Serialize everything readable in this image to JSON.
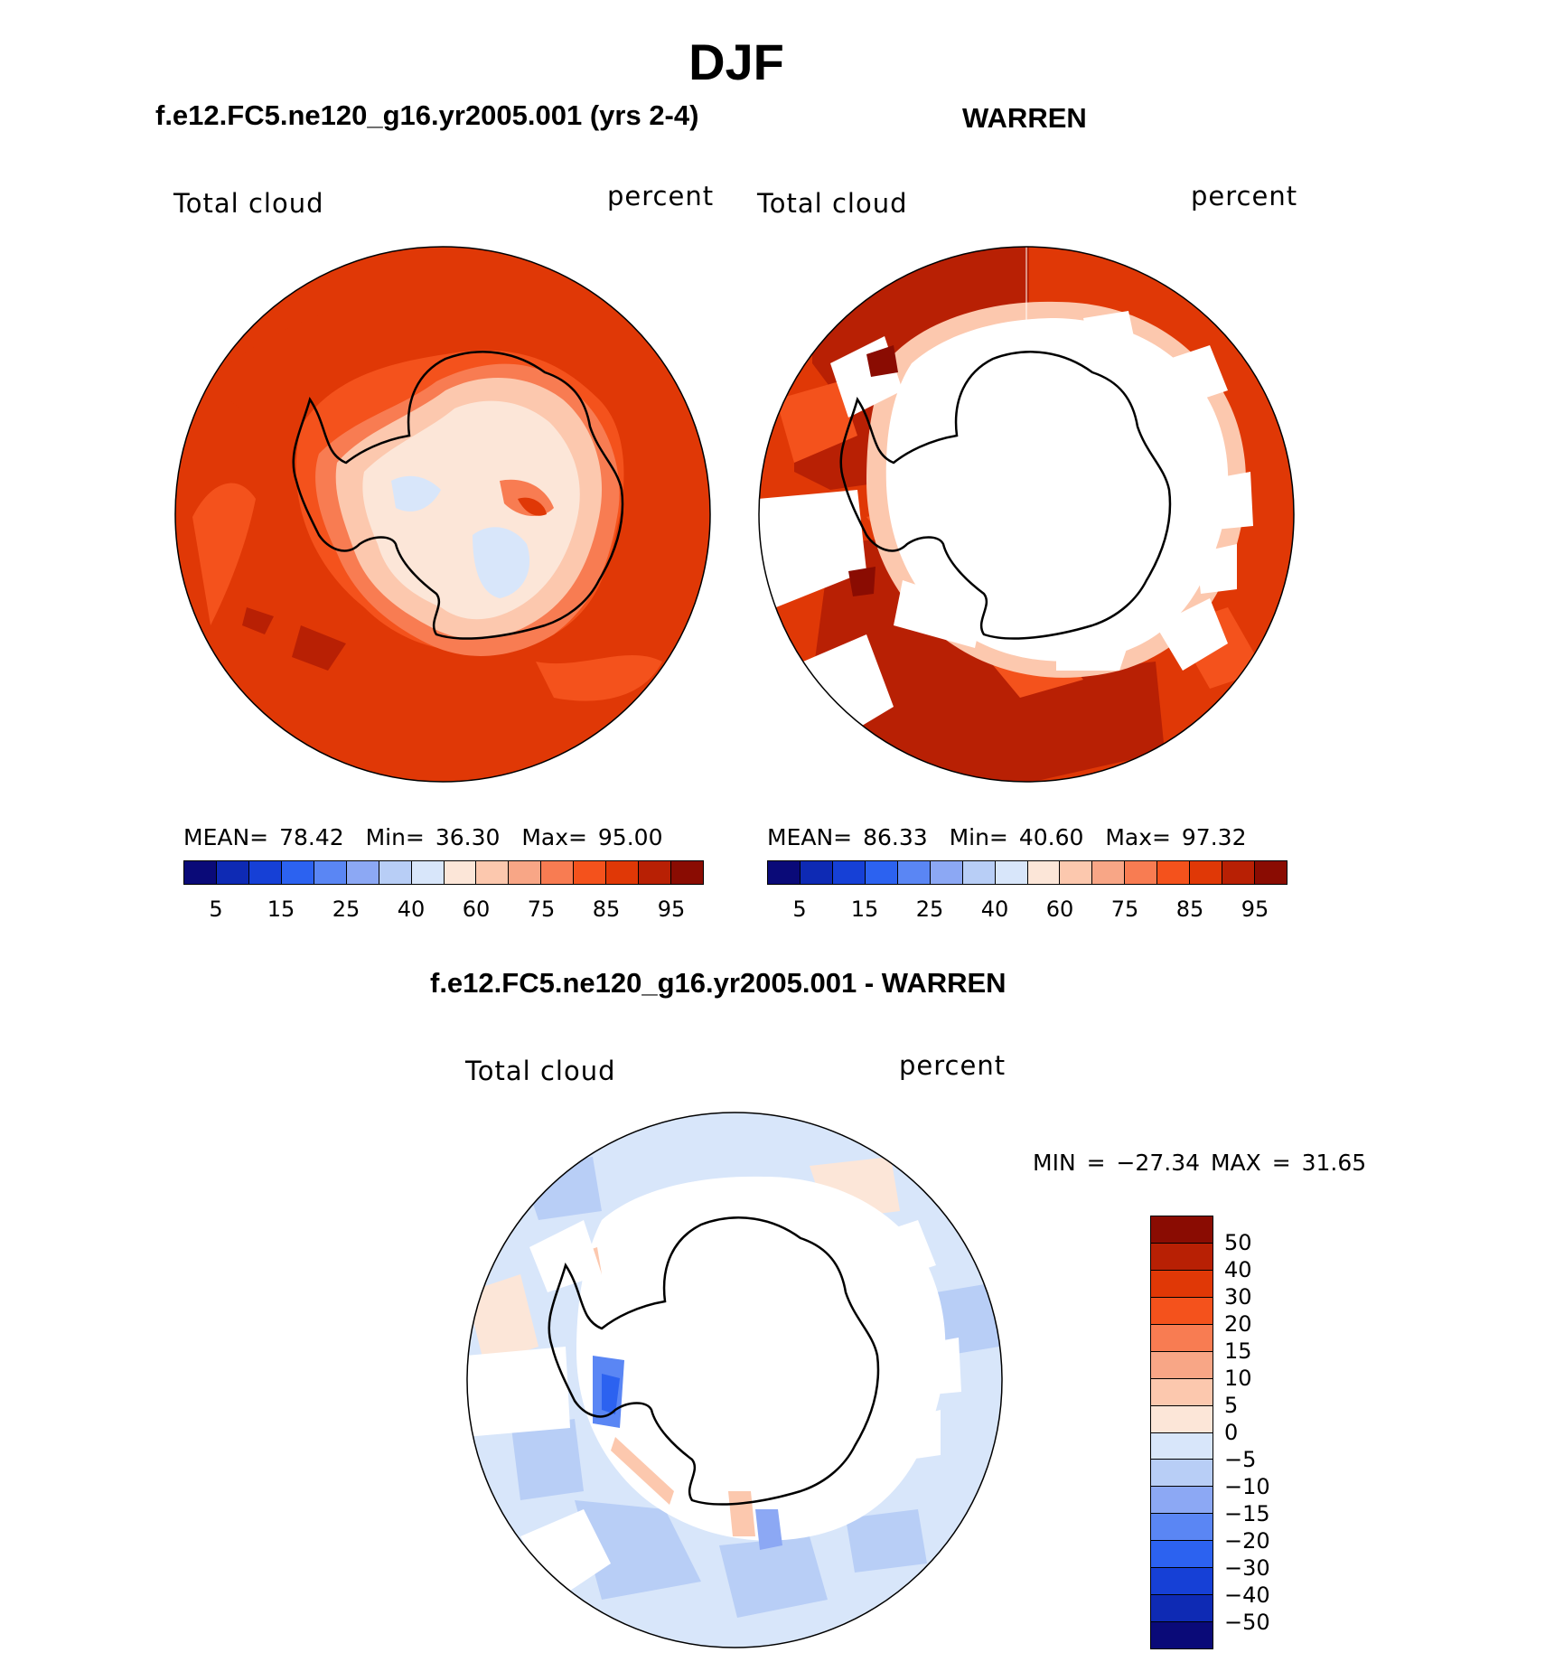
{
  "title": "DJF",
  "variable": "Total cloud",
  "units": "percent",
  "panel1": {
    "title": "f.e12.FC5.ne120_g16.yr2005.001 (yrs 2-4)",
    "stats": {
      "mean_label": "MEAN=",
      "mean": "78.42",
      "min_label": "Min=",
      "min": "36.30",
      "max_label": "Max=",
      "max": "95.00"
    }
  },
  "panel2": {
    "title": "WARREN",
    "stats": {
      "mean_label": "MEAN=",
      "mean": "86.33",
      "min_label": "Min=",
      "min": "40.60",
      "max_label": "Max=",
      "max": "97.32"
    }
  },
  "panel3": {
    "title": "f.e12.FC5.ne120_g16.yr2005.001 - WARREN",
    "stats": "MIN = −27.34 MAX =   31.65"
  },
  "abs_colorbar": {
    "colors": [
      "#0a0a78",
      "#0e2ab4",
      "#1640d6",
      "#2c62f0",
      "#5a86f4",
      "#8ca8f4",
      "#b8cef6",
      "#d8e6fa",
      "#fce6d8",
      "#fcc8ae",
      "#f8a686",
      "#f87c52",
      "#f4521c",
      "#e03806",
      "#b82004",
      "#8a0c02"
    ],
    "ticks": [
      "5",
      "15",
      "25",
      "40",
      "60",
      "75",
      "85",
      "95"
    ]
  },
  "diff_colorbar": {
    "colors": [
      "#8a0c02",
      "#b82004",
      "#e03806",
      "#f4521c",
      "#f87c52",
      "#f8a686",
      "#fcc8ae",
      "#fce6d8",
      "#d8e6fa",
      "#b8cef6",
      "#8ca8f4",
      "#5a86f4",
      "#2c62f0",
      "#1640d6",
      "#0e2ab4",
      "#0a0a78"
    ],
    "ticks": [
      "50",
      "40",
      "30",
      "20",
      "15",
      "10",
      "5",
      "0",
      "−5",
      "−10",
      "−15",
      "−20",
      "−30",
      "−40",
      "−50"
    ]
  }
}
